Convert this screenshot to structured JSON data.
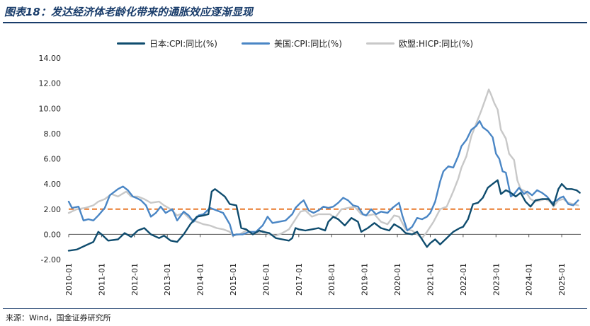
{
  "header": {
    "title": "图表18：发达经济体老龄化带来的通胀效应逐渐显现"
  },
  "footer": {
    "source": "来源：Wind，国金证券研究所"
  },
  "chart_data": {
    "type": "line",
    "title": "图表18：发达经济体老龄化带来的通胀效应逐渐显现",
    "xlabel": "",
    "ylabel": "",
    "ylim": [
      -2,
      14
    ],
    "yticks": [
      -2,
      0,
      2,
      4,
      6,
      8,
      10,
      12,
      14
    ],
    "ytick_labels": [
      "-2.00",
      "0.00",
      "2.00",
      "4.00",
      "6.00",
      "8.00",
      "10.00",
      "12.00",
      "14.00"
    ],
    "xlim": [
      2010.0,
      2025.58
    ],
    "xtick_labels": [
      "2010-01",
      "2011-01",
      "2012-01",
      "2013-01",
      "2014-01",
      "2015-01",
      "2016-01",
      "2017-01",
      "2018-01",
      "2019-01",
      "2020-01",
      "2021-01",
      "2022-01",
      "2023-01",
      "2024-01",
      "2025-01"
    ],
    "legend_position": "top-center",
    "grid": false,
    "reference_line": {
      "value": 2.0,
      "style": "dashed",
      "color": "#e8782a"
    },
    "series": [
      {
        "name": "日本:CPI:同比(%)",
        "color": "#0f4c6e",
        "points": [
          [
            2010.0,
            -1.3
          ],
          [
            2010.25,
            -1.2
          ],
          [
            2010.5,
            -0.9
          ],
          [
            2010.75,
            -0.6
          ],
          [
            2010.9,
            0.2
          ],
          [
            2011.0,
            0.0
          ],
          [
            2011.2,
            -0.5
          ],
          [
            2011.5,
            -0.4
          ],
          [
            2011.7,
            0.1
          ],
          [
            2011.9,
            -0.2
          ],
          [
            2012.1,
            0.3
          ],
          [
            2012.3,
            0.5
          ],
          [
            2012.5,
            0.0
          ],
          [
            2012.75,
            -0.3
          ],
          [
            2012.9,
            -0.1
          ],
          [
            2013.1,
            -0.5
          ],
          [
            2013.3,
            -0.6
          ],
          [
            2013.5,
            0.0
          ],
          [
            2013.7,
            0.8
          ],
          [
            2013.9,
            1.4
          ],
          [
            2014.1,
            1.5
          ],
          [
            2014.25,
            1.6
          ],
          [
            2014.35,
            3.4
          ],
          [
            2014.45,
            3.6
          ],
          [
            2014.6,
            3.3
          ],
          [
            2014.75,
            3.0
          ],
          [
            2014.9,
            2.4
          ],
          [
            2015.1,
            2.3
          ],
          [
            2015.25,
            0.5
          ],
          [
            2015.4,
            0.4
          ],
          [
            2015.6,
            0.0
          ],
          [
            2015.8,
            0.3
          ],
          [
            2015.9,
            0.2
          ],
          [
            2016.1,
            0.1
          ],
          [
            2016.3,
            -0.3
          ],
          [
            2016.5,
            -0.4
          ],
          [
            2016.7,
            -0.5
          ],
          [
            2016.8,
            -0.3
          ],
          [
            2016.9,
            0.5
          ],
          [
            2017.0,
            0.4
          ],
          [
            2017.2,
            0.3
          ],
          [
            2017.4,
            0.4
          ],
          [
            2017.6,
            0.5
          ],
          [
            2017.8,
            0.3
          ],
          [
            2017.9,
            1.0
          ],
          [
            2018.05,
            1.4
          ],
          [
            2018.2,
            1.2
          ],
          [
            2018.4,
            0.7
          ],
          [
            2018.6,
            1.3
          ],
          [
            2018.8,
            1.0
          ],
          [
            2018.9,
            0.2
          ],
          [
            2019.1,
            0.5
          ],
          [
            2019.3,
            0.9
          ],
          [
            2019.5,
            0.5
          ],
          [
            2019.75,
            0.3
          ],
          [
            2019.9,
            0.8
          ],
          [
            2020.1,
            0.5
          ],
          [
            2020.25,
            0.1
          ],
          [
            2020.45,
            0.0
          ],
          [
            2020.6,
            0.2
          ],
          [
            2020.75,
            -0.4
          ],
          [
            2020.9,
            -1.0
          ],
          [
            2021.0,
            -0.7
          ],
          [
            2021.15,
            -0.4
          ],
          [
            2021.3,
            -0.8
          ],
          [
            2021.5,
            -0.3
          ],
          [
            2021.7,
            0.2
          ],
          [
            2021.9,
            0.5
          ],
          [
            2022.0,
            0.6
          ],
          [
            2022.15,
            1.2
          ],
          [
            2022.3,
            2.4
          ],
          [
            2022.45,
            2.5
          ],
          [
            2022.6,
            2.9
          ],
          [
            2022.75,
            3.7
          ],
          [
            2022.9,
            4.0
          ],
          [
            2023.05,
            4.3
          ],
          [
            2023.15,
            3.2
          ],
          [
            2023.3,
            3.5
          ],
          [
            2023.45,
            3.3
          ],
          [
            2023.6,
            3.0
          ],
          [
            2023.75,
            3.3
          ],
          [
            2023.9,
            2.6
          ],
          [
            2024.05,
            2.2
          ],
          [
            2024.2,
            2.7
          ],
          [
            2024.4,
            2.8
          ],
          [
            2024.6,
            2.8
          ],
          [
            2024.75,
            2.3
          ],
          [
            2024.9,
            3.6
          ],
          [
            2025.0,
            4.0
          ],
          [
            2025.15,
            3.6
          ],
          [
            2025.3,
            3.6
          ],
          [
            2025.45,
            3.5
          ],
          [
            2025.55,
            3.3
          ]
        ]
      },
      {
        "name": "美国:CPI:同比(%)",
        "color": "#4a86c5",
        "points": [
          [
            2010.0,
            2.6
          ],
          [
            2010.1,
            2.1
          ],
          [
            2010.3,
            2.2
          ],
          [
            2010.45,
            1.1
          ],
          [
            2010.6,
            1.2
          ],
          [
            2010.75,
            1.1
          ],
          [
            2010.9,
            1.5
          ],
          [
            2011.1,
            2.1
          ],
          [
            2011.25,
            3.1
          ],
          [
            2011.5,
            3.6
          ],
          [
            2011.65,
            3.8
          ],
          [
            2011.8,
            3.5
          ],
          [
            2011.95,
            3.0
          ],
          [
            2012.05,
            2.9
          ],
          [
            2012.2,
            2.7
          ],
          [
            2012.35,
            2.3
          ],
          [
            2012.5,
            1.4
          ],
          [
            2012.65,
            1.7
          ],
          [
            2012.8,
            2.2
          ],
          [
            2012.95,
            1.7
          ],
          [
            2013.15,
            2.0
          ],
          [
            2013.3,
            1.1
          ],
          [
            2013.5,
            1.8
          ],
          [
            2013.65,
            1.5
          ],
          [
            2013.8,
            1.0
          ],
          [
            2013.95,
            1.5
          ],
          [
            2014.1,
            1.6
          ],
          [
            2014.3,
            2.1
          ],
          [
            2014.5,
            1.9
          ],
          [
            2014.7,
            1.7
          ],
          [
            2014.9,
            0.8
          ],
          [
            2015.0,
            -0.1
          ],
          [
            2015.1,
            0.0
          ],
          [
            2015.3,
            0.0
          ],
          [
            2015.5,
            0.2
          ],
          [
            2015.7,
            0.2
          ],
          [
            2015.9,
            0.7
          ],
          [
            2016.05,
            1.4
          ],
          [
            2016.2,
            0.9
          ],
          [
            2016.4,
            1.0
          ],
          [
            2016.6,
            1.1
          ],
          [
            2016.8,
            1.6
          ],
          [
            2016.9,
            2.1
          ],
          [
            2017.05,
            2.5
          ],
          [
            2017.15,
            2.7
          ],
          [
            2017.3,
            1.9
          ],
          [
            2017.45,
            1.7
          ],
          [
            2017.6,
            1.9
          ],
          [
            2017.75,
            2.2
          ],
          [
            2017.9,
            2.1
          ],
          [
            2018.05,
            2.2
          ],
          [
            2018.2,
            2.5
          ],
          [
            2018.35,
            2.9
          ],
          [
            2018.5,
            2.7
          ],
          [
            2018.65,
            2.3
          ],
          [
            2018.8,
            2.2
          ],
          [
            2018.95,
            1.6
          ],
          [
            2019.05,
            1.5
          ],
          [
            2019.2,
            2.0
          ],
          [
            2019.35,
            1.6
          ],
          [
            2019.5,
            1.8
          ],
          [
            2019.7,
            1.7
          ],
          [
            2019.85,
            2.1
          ],
          [
            2019.95,
            2.3
          ],
          [
            2020.05,
            2.5
          ],
          [
            2020.15,
            1.5
          ],
          [
            2020.3,
            0.3
          ],
          [
            2020.45,
            0.6
          ],
          [
            2020.6,
            1.3
          ],
          [
            2020.75,
            1.2
          ],
          [
            2020.9,
            1.4
          ],
          [
            2021.0,
            1.7
          ],
          [
            2021.15,
            2.6
          ],
          [
            2021.3,
            4.2
          ],
          [
            2021.4,
            5.0
          ],
          [
            2021.55,
            5.4
          ],
          [
            2021.7,
            5.3
          ],
          [
            2021.85,
            6.2
          ],
          [
            2021.95,
            7.0
          ],
          [
            2022.1,
            7.5
          ],
          [
            2022.25,
            8.3
          ],
          [
            2022.4,
            8.6
          ],
          [
            2022.5,
            9.0
          ],
          [
            2022.6,
            8.5
          ],
          [
            2022.75,
            8.2
          ],
          [
            2022.9,
            7.7
          ],
          [
            2023.0,
            6.4
          ],
          [
            2023.1,
            6.0
          ],
          [
            2023.2,
            5.0
          ],
          [
            2023.3,
            4.9
          ],
          [
            2023.45,
            3.0
          ],
          [
            2023.55,
            3.2
          ],
          [
            2023.7,
            3.7
          ],
          [
            2023.85,
            3.2
          ],
          [
            2023.95,
            3.4
          ],
          [
            2024.1,
            3.1
          ],
          [
            2024.25,
            3.5
          ],
          [
            2024.4,
            3.3
          ],
          [
            2024.55,
            3.0
          ],
          [
            2024.7,
            2.5
          ],
          [
            2024.85,
            2.7
          ],
          [
            2024.95,
            2.9
          ],
          [
            2025.05,
            3.0
          ],
          [
            2025.2,
            2.4
          ],
          [
            2025.35,
            2.3
          ],
          [
            2025.5,
            2.7
          ]
        ]
      },
      {
        "name": "欧盟:HICP:同比(%)",
        "color": "#c8c8c8",
        "points": [
          [
            2010.0,
            1.7
          ],
          [
            2010.25,
            2.0
          ],
          [
            2010.5,
            2.1
          ],
          [
            2010.75,
            2.3
          ],
          [
            2010.9,
            2.6
          ],
          [
            2011.1,
            2.8
          ],
          [
            2011.3,
            3.2
          ],
          [
            2011.5,
            3.0
          ],
          [
            2011.75,
            3.4
          ],
          [
            2011.9,
            3.0
          ],
          [
            2012.1,
            3.0
          ],
          [
            2012.3,
            2.8
          ],
          [
            2012.5,
            2.5
          ],
          [
            2012.75,
            2.6
          ],
          [
            2012.9,
            2.3
          ],
          [
            2013.1,
            2.0
          ],
          [
            2013.3,
            1.5
          ],
          [
            2013.5,
            1.7
          ],
          [
            2013.7,
            1.2
          ],
          [
            2013.9,
            1.0
          ],
          [
            2014.1,
            0.8
          ],
          [
            2014.3,
            0.7
          ],
          [
            2014.5,
            0.5
          ],
          [
            2014.7,
            0.4
          ],
          [
            2014.9,
            0.2
          ],
          [
            2015.0,
            -0.1
          ],
          [
            2015.2,
            0.0
          ],
          [
            2015.4,
            0.3
          ],
          [
            2015.6,
            0.1
          ],
          [
            2015.8,
            0.1
          ],
          [
            2015.9,
            0.3
          ],
          [
            2016.1,
            0.0
          ],
          [
            2016.3,
            -0.1
          ],
          [
            2016.5,
            0.1
          ],
          [
            2016.7,
            0.4
          ],
          [
            2016.9,
            1.2
          ],
          [
            2017.05,
            1.8
          ],
          [
            2017.2,
            1.9
          ],
          [
            2017.4,
            1.4
          ],
          [
            2017.6,
            1.6
          ],
          [
            2017.8,
            1.6
          ],
          [
            2017.95,
            1.6
          ],
          [
            2018.1,
            1.3
          ],
          [
            2018.3,
            2.0
          ],
          [
            2018.5,
            2.1
          ],
          [
            2018.7,
            2.2
          ],
          [
            2018.9,
            1.6
          ],
          [
            2019.1,
            1.5
          ],
          [
            2019.3,
            1.6
          ],
          [
            2019.5,
            1.0
          ],
          [
            2019.7,
            0.8
          ],
          [
            2019.9,
            1.5
          ],
          [
            2020.05,
            1.4
          ],
          [
            2020.25,
            0.4
          ],
          [
            2020.45,
            0.3
          ],
          [
            2020.6,
            0.0
          ],
          [
            2020.75,
            -0.3
          ],
          [
            2020.9,
            0.2
          ],
          [
            2021.1,
            1.0
          ],
          [
            2021.3,
            2.0
          ],
          [
            2021.5,
            2.2
          ],
          [
            2021.7,
            3.4
          ],
          [
            2021.85,
            4.4
          ],
          [
            2021.95,
            5.3
          ],
          [
            2022.1,
            6.2
          ],
          [
            2022.25,
            7.8
          ],
          [
            2022.4,
            8.8
          ],
          [
            2022.55,
            9.8
          ],
          [
            2022.7,
            10.9
          ],
          [
            2022.78,
            11.5
          ],
          [
            2022.85,
            11.1
          ],
          [
            2022.95,
            10.4
          ],
          [
            2023.05,
            9.9
          ],
          [
            2023.15,
            8.3
          ],
          [
            2023.3,
            7.6
          ],
          [
            2023.4,
            6.4
          ],
          [
            2023.55,
            5.9
          ],
          [
            2023.65,
            4.3
          ],
          [
            2023.75,
            3.6
          ],
          [
            2023.9,
            3.4
          ],
          [
            2024.05,
            2.8
          ],
          [
            2024.2,
            2.6
          ],
          [
            2024.35,
            2.7
          ],
          [
            2024.5,
            2.8
          ],
          [
            2024.65,
            2.6
          ],
          [
            2024.75,
            2.2
          ],
          [
            2024.9,
            2.7
          ],
          [
            2025.05,
            2.8
          ],
          [
            2025.2,
            2.5
          ],
          [
            2025.35,
            2.4
          ],
          [
            2025.5,
            2.3
          ]
        ]
      }
    ]
  }
}
